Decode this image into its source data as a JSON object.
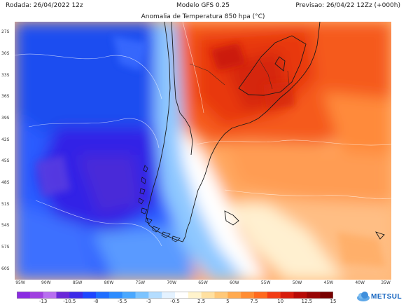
{
  "header": {
    "rodada": "Rodada: 26/04/2022 12z",
    "modelo": "Modelo GFS 0.25",
    "previsao": "Previsao: 26/04/22 12Zz (+000h)",
    "titulo": "Anomalia de Temperatura 850 hpa (°C)"
  },
  "axes": {
    "lat_labels": [
      "27S",
      "30S",
      "33S",
      "36S",
      "39S",
      "42S",
      "45S",
      "48S",
      "51S",
      "54S",
      "57S",
      "60S"
    ],
    "lon_labels": [
      "95W",
      "90W",
      "85W",
      "80W",
      "75W",
      "70W",
      "65W",
      "60W",
      "55W",
      "50W",
      "45W",
      "40W",
      "35W"
    ]
  },
  "colorbar": {
    "labels": [
      "-13",
      "-10.5",
      "-8",
      "-5.5",
      "-3",
      "-0.5",
      "2.5",
      "5",
      "7.5",
      "10",
      "12.5",
      "15"
    ],
    "colors": [
      "#8a2be2",
      "#a040e0",
      "#b86ef0",
      "#6a28d8",
      "#3c2ae8",
      "#1e46ff",
      "#1f6eff",
      "#2c8cff",
      "#4aa8ff",
      "#7cc4ff",
      "#b4ddff",
      "#e4f2ff",
      "#ffffff",
      "#fff3cc",
      "#ffe0a0",
      "#ffc878",
      "#ffaa50",
      "#ff8c32",
      "#ff6a1e",
      "#f23c14",
      "#d81c0c",
      "#b80a06",
      "#980404",
      "#780000"
    ]
  },
  "logo": {
    "text": "METSUL",
    "icon": "cloud-logo-icon"
  }
}
